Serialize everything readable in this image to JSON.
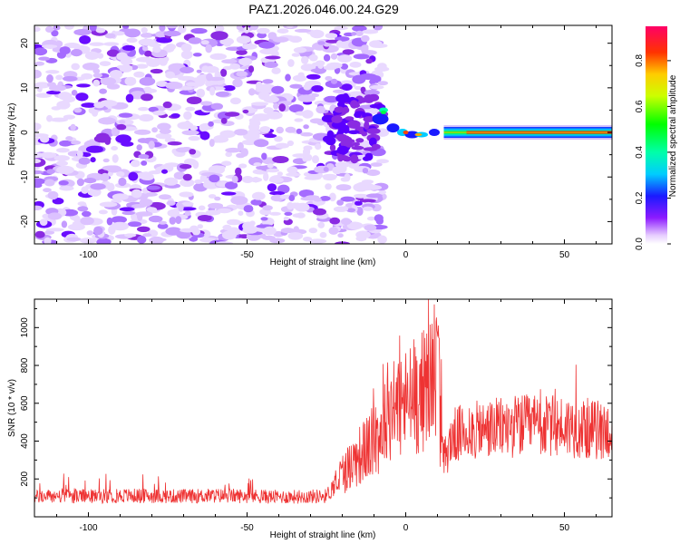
{
  "title": "PAZ1.2026.046.00.24.G29",
  "chart_data": [
    {
      "type": "heatmap",
      "title": "PAZ1.2026.046.00.24.G29",
      "xlabel": "Height of straight line (km)",
      "ylabel": "Frequency (Hz)",
      "xlim": [
        -117,
        65
      ],
      "ylim": [
        -25,
        24
      ],
      "xticks": [
        -100,
        -50,
        0,
        50
      ],
      "yticks": [
        -20,
        -10,
        0,
        10,
        20
      ],
      "xtick_labels": [
        "-100",
        "-50",
        "0",
        "50"
      ],
      "ytick_labels": [
        "-20",
        "-10",
        "0",
        "10",
        "20"
      ],
      "description_values": {
        "noise_region_x": [
          -117,
          -10
        ],
        "transition_x": [
          -10,
          12
        ],
        "signal_line_x": [
          12,
          65
        ],
        "signal_frequency_hz": 0,
        "signal_amplitude": 0.88
      },
      "colorbar": {
        "label": "Normalized spectral amplitude",
        "range": [
          0,
          0.95
        ],
        "ticks": [
          0.0,
          0.2,
          0.4,
          0.6,
          0.8
        ],
        "tick_labels": [
          "0.0",
          "0.2",
          "0.4",
          "0.6",
          "0.8"
        ]
      }
    },
    {
      "type": "line",
      "xlabel": "Height of straight line (km)",
      "ylabel": "SNR (10 * v/v)",
      "xlim": [
        -117,
        65
      ],
      "ylim": [
        0,
        1150
      ],
      "xticks": [
        -100,
        -50,
        0,
        50
      ],
      "yticks": [
        200,
        400,
        600,
        800,
        1000
      ],
      "xtick_labels": [
        "-100",
        "-50",
        "0",
        "50"
      ],
      "ytick_labels": [
        "200",
        "400",
        "600",
        "800",
        "1000"
      ],
      "series": [
        {
          "name": "SNR",
          "color": "#ee3333",
          "x": [
            -117,
            -110,
            -100,
            -90,
            -80,
            -70,
            -60,
            -50,
            -40,
            -30,
            -25,
            -22,
            -20,
            -17,
            -15,
            -12,
            -10,
            -7,
            -5,
            -3,
            0,
            3,
            5,
            7,
            9,
            10,
            11,
            12,
            15,
            20,
            25,
            30,
            35,
            40,
            45,
            50,
            55,
            60,
            65
          ],
          "y": [
            105,
            110,
            108,
            112,
            110,
            108,
            112,
            110,
            105,
            108,
            110,
            180,
            230,
            280,
            320,
            360,
            400,
            470,
            560,
            590,
            600,
            640,
            660,
            700,
            780,
            950,
            420,
            300,
            430,
            450,
            460,
            470,
            480,
            480,
            475,
            480,
            470,
            460,
            455
          ]
        }
      ]
    }
  ]
}
